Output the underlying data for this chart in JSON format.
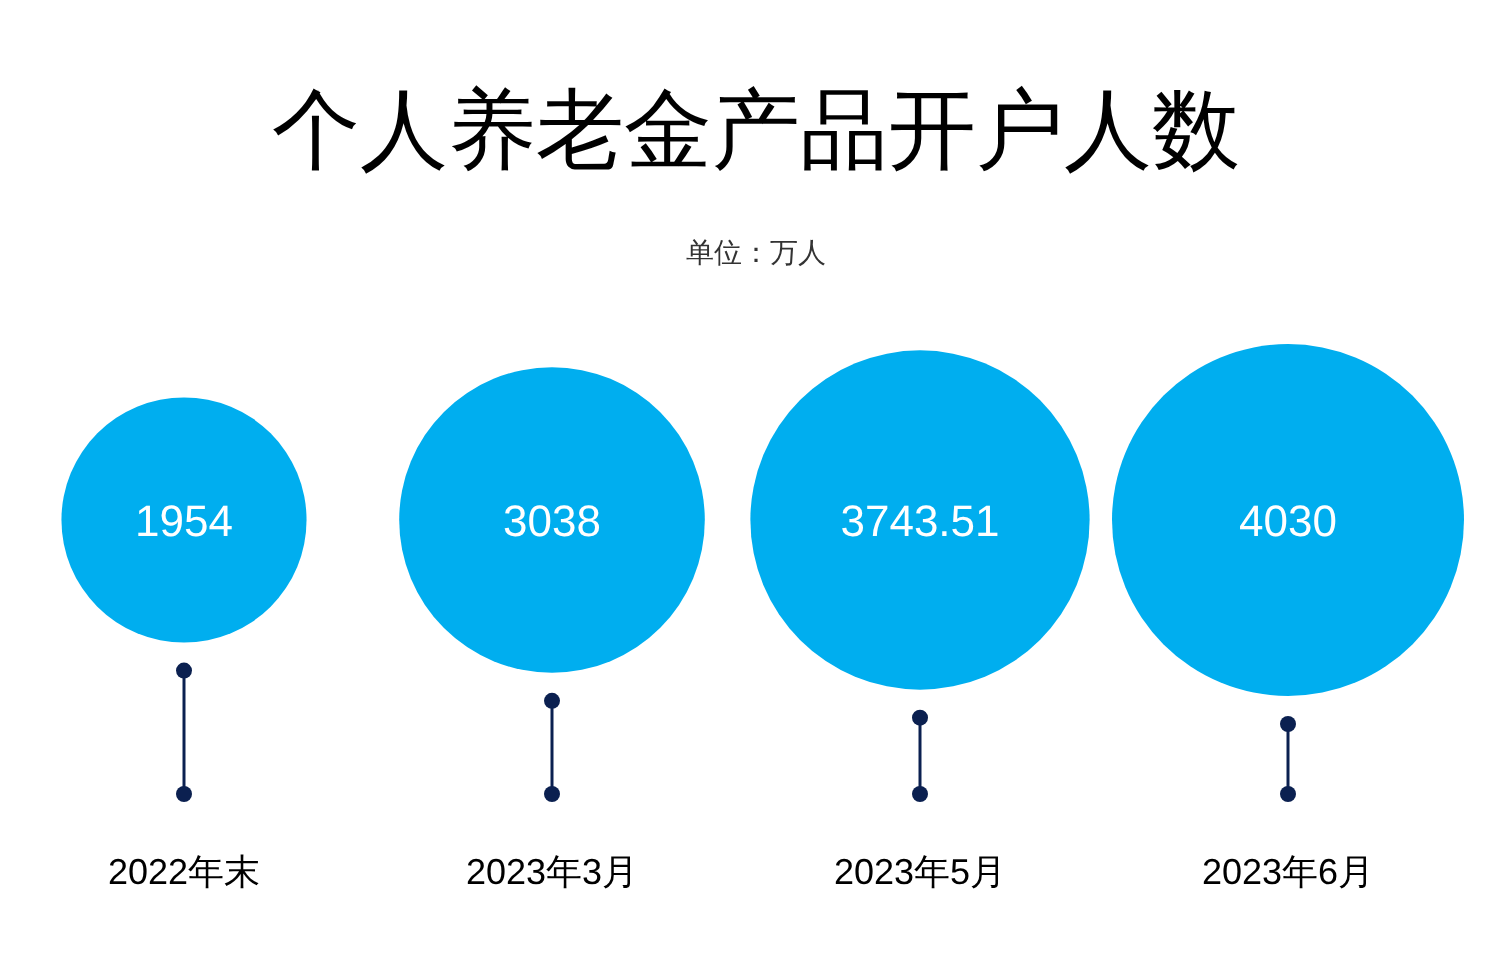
{
  "chart_data": {
    "type": "other",
    "title": "个人养老金产品开户人数",
    "subtitle": "单位：万人",
    "categories": [
      "2022年末",
      "2023年3月",
      "2023年5月",
      "2023年6月"
    ],
    "values": [
      1954,
      3038,
      3743.51,
      4030
    ],
    "color": "#00aeef",
    "data_labels": true
  }
}
